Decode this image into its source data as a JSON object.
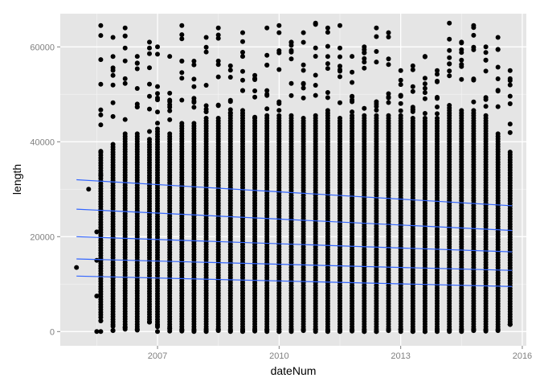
{
  "chart_data": {
    "type": "scatter",
    "title": "",
    "xlabel": "dateNum",
    "ylabel": "length",
    "xlim": [
      2004.6,
      2016.1
    ],
    "ylim": [
      -3000,
      67000
    ],
    "x_ticks": [
      2007,
      2010,
      2013,
      2016
    ],
    "y_ticks": [
      0,
      20000,
      40000,
      60000
    ],
    "grid": true,
    "legend": "none",
    "colors": {
      "panel": "#e5e5e5",
      "grid": "#ffffff",
      "point": "#000000",
      "line": "#3366ff"
    },
    "columns": {
      "x": [
        2005.6,
        2005.9,
        2006.2,
        2006.5,
        2006.8,
        2007.0,
        2007.3,
        2007.6,
        2007.9,
        2008.2,
        2008.5,
        2008.8,
        2009.1,
        2009.4,
        2009.7,
        2010.0,
        2010.3,
        2010.6,
        2010.9,
        2011.2,
        2011.5,
        2011.8,
        2012.1,
        2012.4,
        2012.7,
        2013.0,
        2013.3,
        2013.6,
        2013.9,
        2014.2,
        2014.5,
        2014.8,
        2015.1,
        2015.4,
        2015.7
      ],
      "max": [
        64500,
        62000,
        64000,
        58000,
        61000,
        60000,
        58000,
        64500,
        57000,
        62000,
        64000,
        56000,
        63000,
        54000,
        64000,
        64500,
        61000,
        63000,
        65000,
        64000,
        64500,
        58000,
        60000,
        64000,
        63000,
        55000,
        56000,
        58000,
        55000,
        65000,
        61000,
        64500,
        60000,
        62000,
        55000
      ],
      "dense_top": [
        38000,
        40000,
        42000,
        42000,
        41000,
        43000,
        42000,
        44000,
        44000,
        45000,
        45000,
        46000,
        47000,
        45000,
        46000,
        46000,
        46000,
        45000,
        46000,
        47000,
        45000,
        46000,
        46000,
        46000,
        46000,
        46000,
        45000,
        45000,
        45000,
        48000,
        47000,
        47000,
        46000,
        42000,
        38000
      ],
      "dense_bottom": [
        3000,
        1500,
        1000,
        1000,
        2000,
        1500,
        1000,
        500,
        500,
        500,
        500,
        500,
        500,
        500,
        500,
        500,
        500,
        500,
        500,
        500,
        500,
        500,
        500,
        500,
        500,
        500,
        500,
        500,
        500,
        500,
        500,
        500,
        500,
        1000,
        1500
      ],
      "min": [
        0,
        200,
        500,
        300,
        2000,
        0,
        100,
        100,
        0,
        0,
        200,
        0,
        0,
        100,
        0,
        0,
        0,
        200,
        0,
        0,
        0,
        100,
        0,
        0,
        200,
        0,
        0,
        0,
        0,
        0,
        0,
        200,
        100,
        200,
        1500
      ]
    },
    "sparse_points": [
      {
        "x": 2005.0,
        "y": 13500
      },
      {
        "x": 2005.3,
        "y": 30000
      },
      {
        "x": 2005.5,
        "y": 0
      },
      {
        "x": 2005.5,
        "y": 7500
      },
      {
        "x": 2005.5,
        "y": 15000
      },
      {
        "x": 2005.5,
        "y": 21000
      },
      {
        "x": 2005.6,
        "y": 33000
      }
    ],
    "series": [
      {
        "x": [
          2005.0,
          2015.75
        ],
        "values": [
          32000,
          26500
        ]
      },
      {
        "x": [
          2005.0,
          2015.75
        ],
        "values": [
          25800,
          21300
        ]
      },
      {
        "x": [
          2005.0,
          2015.75
        ],
        "values": [
          20000,
          16800
        ]
      },
      {
        "x": [
          2005.0,
          2015.75
        ],
        "values": [
          15300,
          12900
        ]
      },
      {
        "x": [
          2005.0,
          2015.75
        ],
        "values": [
          11700,
          9500
        ]
      }
    ]
  }
}
